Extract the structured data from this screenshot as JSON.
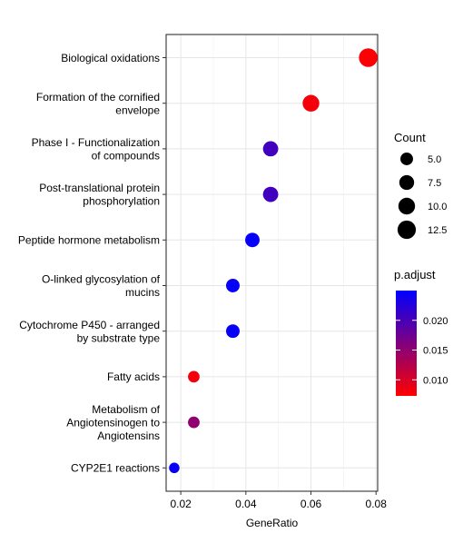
{
  "chart_data": {
    "type": "scatter",
    "xlabel": "GeneRatio",
    "ylabel": "",
    "xlim": [
      0.0155,
      0.0805
    ],
    "x_ticks": [
      "0.02",
      "0.04",
      "0.06",
      "0.08"
    ],
    "x_tick_values": [
      0.02,
      0.04,
      0.06,
      0.08
    ],
    "grid": true,
    "legend_position": "right",
    "categories": [
      "Biological oxidations",
      "Formation of the cornified\nenvelope",
      "Phase I - Functionalization\nof compounds",
      "Post-translational protein\nphosphorylation",
      "Peptide hormone metabolism",
      "O-linked glycosylation of\nmucins",
      "Cytochrome P450 - arranged\nby substrate type",
      "Fatty acids",
      "Metabolism of\nAngiotensinogen to\nAngiotensins",
      "CYP2E1 reactions"
    ],
    "points": [
      {
        "x": 0.0776,
        "count": 13,
        "p_adjust": 0.0075
      },
      {
        "x": 0.06,
        "count": 10,
        "p_adjust": 0.008
      },
      {
        "x": 0.0476,
        "count": 8,
        "p_adjust": 0.0205
      },
      {
        "x": 0.0476,
        "count": 8,
        "p_adjust": 0.0205
      },
      {
        "x": 0.042,
        "count": 7,
        "p_adjust": 0.0245
      },
      {
        "x": 0.036,
        "count": 6,
        "p_adjust": 0.0245
      },
      {
        "x": 0.036,
        "count": 6,
        "p_adjust": 0.0245
      },
      {
        "x": 0.024,
        "count": 4,
        "p_adjust": 0.008
      },
      {
        "x": 0.024,
        "count": 4,
        "p_adjust": 0.015
      },
      {
        "x": 0.018,
        "count": 3,
        "p_adjust": 0.0245
      }
    ],
    "size_legend": {
      "title": "Count",
      "labels": [
        "5.0",
        "7.5",
        "10.0",
        "12.5"
      ],
      "values": [
        5.0,
        7.5,
        10.0,
        12.5
      ]
    },
    "color_legend": {
      "title": "p.adjust",
      "labels": [
        "0.020",
        "0.015",
        "0.010"
      ],
      "values": [
        0.02,
        0.015,
        0.01
      ],
      "range": [
        0.0073,
        0.025
      ],
      "low_color": "#ff0000",
      "high_color": "#0000ff"
    }
  }
}
